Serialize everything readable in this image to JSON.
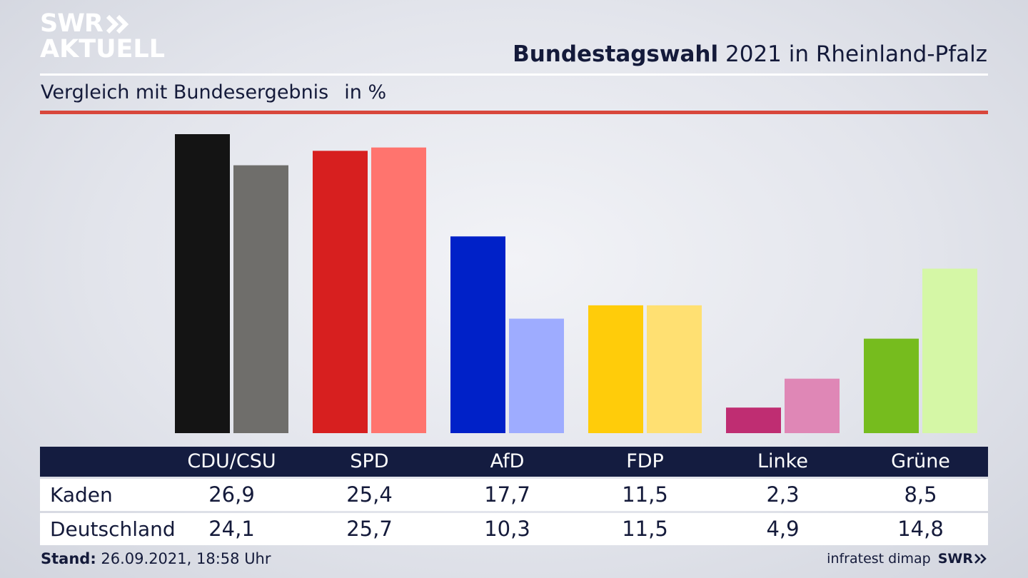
{
  "logo": {
    "line1": "SWR",
    "line2": "AKTUELL"
  },
  "header": {
    "title_bold": "Bundestagswahl",
    "title_rest": "2021 in Rheinland-Pfalz"
  },
  "subtitle": {
    "text": "Vergleich mit Bundesergebnis",
    "unit": "in %"
  },
  "chart_data": {
    "type": "bar",
    "categories": [
      "CDU/CSU",
      "SPD",
      "AfD",
      "FDP",
      "Linke",
      "Grüne"
    ],
    "series": [
      {
        "name": "Kaden",
        "values": [
          26.9,
          25.4,
          17.7,
          11.5,
          2.3,
          8.5
        ],
        "colors": [
          "#141414",
          "#d71f1f",
          "#0021c8",
          "#ffcc0a",
          "#bf2d72",
          "#76bc1e"
        ]
      },
      {
        "name": "Deutschland",
        "values": [
          24.1,
          25.7,
          10.3,
          11.5,
          4.9,
          14.8
        ],
        "colors": [
          "#6f6e6b",
          "#ff746e",
          "#9eacff",
          "#ffe072",
          "#df87b6",
          "#d5f7a6"
        ]
      }
    ],
    "ylim": [
      0,
      26.9
    ]
  },
  "footer": {
    "stand_label": "Stand:",
    "stand_value": "26.09.2021, 18:58 Uhr",
    "source": "infratest dimap",
    "brand": "SWR"
  }
}
